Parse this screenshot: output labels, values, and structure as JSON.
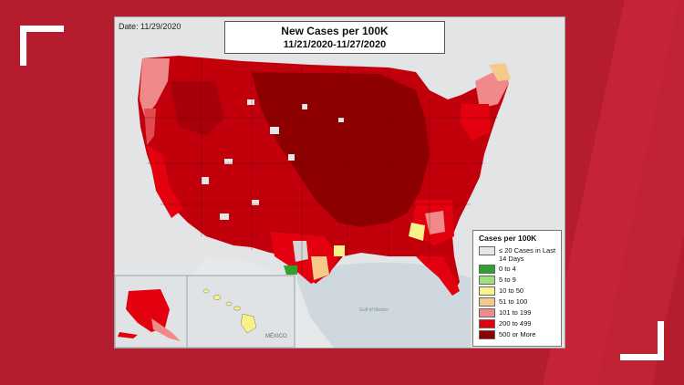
{
  "map": {
    "date": "Date: 11/29/2020",
    "title_line1": "New Cases per 100K",
    "title_line2": "11/21/2020-11/27/2020",
    "country_label": "MÉXICO",
    "gulf_label": "Gulf of Mexico"
  },
  "legend": {
    "title": "Cases per 100K",
    "items": [
      {
        "label": "≤ 20 Cases in Last 14 Days",
        "color": "#e6e6e6"
      },
      {
        "label": "0 to 4",
        "color": "#2ea12e"
      },
      {
        "label": "5 to 9",
        "color": "#9fe07c"
      },
      {
        "label": "10 to 50",
        "color": "#f7f28a"
      },
      {
        "label": "51 to 100",
        "color": "#f5c98a"
      },
      {
        "label": "101 to 199",
        "color": "#f08a8a"
      },
      {
        "label": "200 to 499",
        "color": "#e3000f"
      },
      {
        "label": "500 or More",
        "color": "#8e0000"
      }
    ]
  },
  "colors": {
    "background": "#b51d2e",
    "panel": "#dfe3e6",
    "high": "#8e0000",
    "mid": "#e3000f",
    "light": "#f08a8a",
    "pale": "#f5c98a",
    "yellow": "#f7f28a",
    "gray": "#e6e6e6",
    "green": "#2ea12e"
  }
}
